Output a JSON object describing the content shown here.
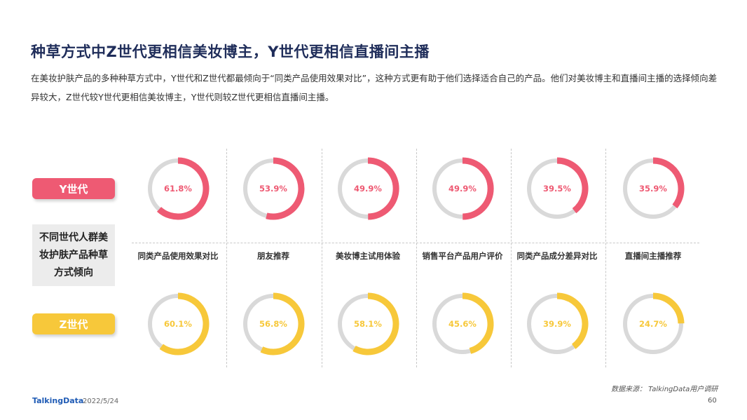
{
  "header": {
    "title": "种草方式中Z世代更相信美妆博主，Y世代更相信直播间主播",
    "description": "在美妆护肤产品的多种种草方式中，Y世代和Z世代都最倾向于“同类产品使用效果对比”，这种方式更有助于他们选择适合自己的产品。他们对美妆博主和直播间主播的选择倾向差异较大，Z世代较Y世代更相信美妆博主，Y世代则较Z世代更相信直播间主播。"
  },
  "legend": {
    "y_label": "Y世代",
    "z_label": "Z世代",
    "group_label": "不同世代人群美妆护肤产品种草方式倾向"
  },
  "colors": {
    "y_series": "#ee5a73",
    "z_series": "#f7c83a",
    "track": "#d9d9d9",
    "title": "#1f2d5a"
  },
  "chart_data": {
    "type": "donut",
    "categories": [
      "同类产品使用效果对比",
      "朋友推荐",
      "美妆博主试用体验",
      "销售平台产品用户评价",
      "同类产品成分差异对比",
      "直播间主播推荐"
    ],
    "series": [
      {
        "name": "Y世代",
        "values": [
          61.8,
          53.9,
          49.9,
          49.9,
          39.5,
          35.9
        ],
        "labels": [
          "61.8%",
          "53.9%",
          "49.9%",
          "49.9%",
          "39.5%",
          "35.9%"
        ]
      },
      {
        "name": "Z世代",
        "values": [
          60.1,
          56.8,
          58.1,
          45.6,
          39.9,
          24.7
        ],
        "labels": [
          "60.1%",
          "56.8%",
          "58.1%",
          "45.6%",
          "39.9%",
          "24.7%"
        ]
      }
    ],
    "unit": "%"
  },
  "footer": {
    "source": "数据来源： TalkingData用户调研",
    "logo": "TalkingData",
    "date": "2022/5/24",
    "page": "60"
  }
}
